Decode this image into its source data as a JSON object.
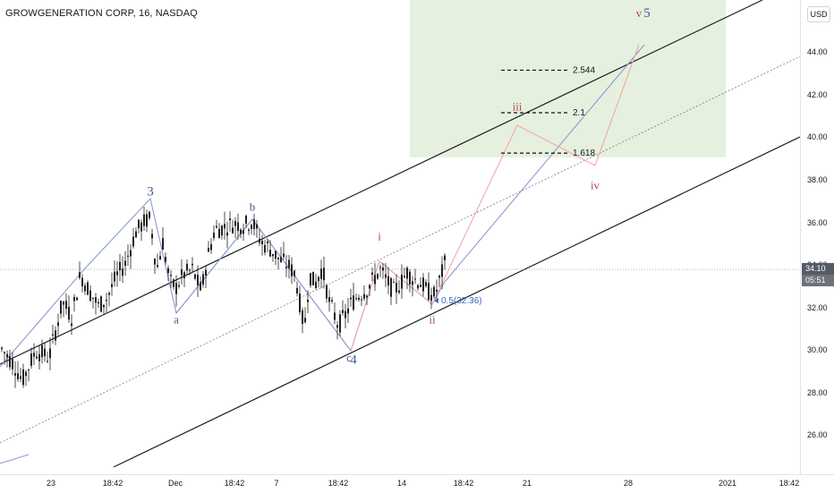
{
  "header": {
    "title": "GROWGENERATION CORP, 16, NASDAQ",
    "currency": "USD"
  },
  "price": {
    "last": "34.10",
    "countdown": "05:51"
  },
  "colors": {
    "wave_blue": "#8a9bd0",
    "wave_pink": "#f2a8a6",
    "channel": "#1e1e1e",
    "target_zone": "#e6f0df",
    "candle": "#222222",
    "label_blue": "#3d5b8b",
    "label_red": "#b44a4a"
  },
  "chart_data": {
    "type": "candlestick",
    "title": "GROWGENERATION CORP, 16, NASDAQ",
    "x_tick_labels": [
      "23",
      "18:42",
      "Dec",
      "18:42",
      "7",
      "18:42",
      "14",
      "18:42",
      "21",
      "28",
      "2021",
      "18:42"
    ],
    "y_tick_labels": [
      "26.00",
      "28.00",
      "30.00",
      "32.00",
      "34.00",
      "36.00",
      "38.00",
      "40.00",
      "42.00",
      "44.00"
    ],
    "ylim": [
      24.2,
      46.5
    ],
    "last_price": 34.1,
    "price_path": [
      [
        0,
        30.2
      ],
      [
        15,
        29.4
      ],
      [
        25,
        28.6
      ],
      [
        40,
        30.0
      ],
      [
        55,
        29.7
      ],
      [
        70,
        32.3
      ],
      [
        80,
        31.6
      ],
      [
        90,
        33.6
      ],
      [
        100,
        32.8
      ],
      [
        110,
        32.1
      ],
      [
        120,
        32.5
      ],
      [
        130,
        33.5
      ],
      [
        140,
        34.1
      ],
      [
        152,
        35.6
      ],
      [
        162,
        36.1
      ],
      [
        168,
        36.2
      ],
      [
        175,
        33.8
      ],
      [
        182,
        35.1
      ],
      [
        190,
        33.2
      ],
      [
        197,
        33.0
      ],
      [
        205,
        33.6
      ],
      [
        215,
        33.8
      ],
      [
        225,
        32.8
      ],
      [
        232,
        34.4
      ],
      [
        240,
        35.7
      ],
      [
        250,
        35.8
      ],
      [
        262,
        36.0
      ],
      [
        272,
        35.9
      ],
      [
        282,
        36.1
      ],
      [
        292,
        35.1
      ],
      [
        302,
        34.8
      ],
      [
        312,
        34.3
      ],
      [
        322,
        34.0
      ],
      [
        330,
        33.6
      ],
      [
        336,
        32.0
      ],
      [
        340,
        31.0
      ],
      [
        346,
        33.6
      ],
      [
        352,
        33.1
      ],
      [
        360,
        33.9
      ],
      [
        368,
        32.3
      ],
      [
        378,
        31.2
      ],
      [
        385,
        31.6
      ],
      [
        392,
        32.2
      ],
      [
        400,
        32.6
      ],
      [
        410,
        32.9
      ],
      [
        418,
        33.4
      ],
      [
        425,
        33.8
      ],
      [
        432,
        33.3
      ],
      [
        440,
        32.8
      ],
      [
        448,
        33.2
      ],
      [
        455,
        33.7
      ],
      [
        462,
        33.4
      ],
      [
        470,
        33.2
      ],
      [
        478,
        32.8
      ],
      [
        486,
        32.6
      ],
      [
        492,
        33.4
      ],
      [
        497,
        34.1
      ]
    ],
    "wave_labels": [
      {
        "label": "3",
        "x": 168,
        "price": 37.3,
        "color": "blue"
      },
      {
        "label": "a",
        "x": 197,
        "price": 31.3,
        "color": "blue"
      },
      {
        "label": "b",
        "x": 282,
        "price": 36.6,
        "color": "blue"
      },
      {
        "label": "c",
        "x": 390,
        "price": 29.5,
        "color": "blue"
      },
      {
        "label": "4",
        "x": 395,
        "price": 29.4,
        "color": "blue"
      },
      {
        "label": "i",
        "x": 424,
        "price": 35.2,
        "color": "red"
      },
      {
        "label": "ii",
        "x": 483,
        "price": 31.3,
        "color": "red"
      },
      {
        "label": "iii",
        "x": 578,
        "price": 41.3,
        "color": "red"
      },
      {
        "label": "iv",
        "x": 665,
        "price": 37.6,
        "color": "red"
      },
      {
        "label": "v",
        "x": 714,
        "price": 45.7,
        "color": "red"
      },
      {
        "label": "5",
        "x": 723,
        "price": 45.7,
        "color": "blue"
      }
    ],
    "fib_levels": [
      {
        "label": "2.544",
        "price": 43.2
      },
      {
        "label": "2.1",
        "price": 41.2
      },
      {
        "label": "1.618",
        "price": 39.3
      }
    ],
    "retracement": {
      "label": "0.5(32.36)",
      "price": 32.36
    },
    "target_zone": {
      "price_top": 46.5,
      "price_bottom": 39.1
    }
  }
}
